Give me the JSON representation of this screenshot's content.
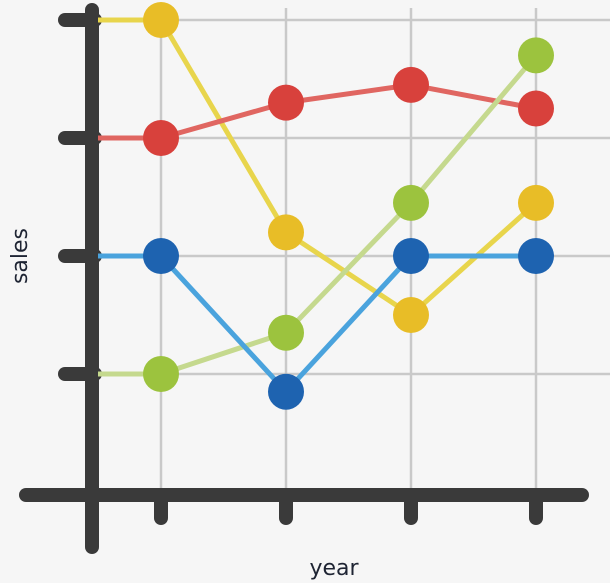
{
  "chart_data": {
    "type": "line",
    "title": "",
    "xlabel": "year",
    "ylabel": "sales",
    "categories": [
      "",
      "",
      "",
      ""
    ],
    "xlim": [
      0,
      4.5
    ],
    "ylim": [
      0,
      4.5
    ],
    "grid": true,
    "legend": "none",
    "series": [
      {
        "color": "#e8d54c",
        "marker_color": "#e8bd27",
        "x": [
          0,
          0.5,
          1.5,
          2.5,
          3.5
        ],
        "values": [
          4.0,
          4.0,
          2.2,
          1.5,
          2.45
        ],
        "markers": [
          false,
          true,
          true,
          true,
          true
        ]
      },
      {
        "color": "#e06661",
        "marker_color": "#d8413c",
        "x": [
          0,
          0.5,
          1.5,
          2.5,
          3.5
        ],
        "values": [
          3.0,
          3.0,
          3.3,
          3.45,
          3.25
        ],
        "markers": [
          false,
          true,
          true,
          true,
          true
        ]
      },
      {
        "color": "#c5d98e",
        "marker_color": "#9cc33e",
        "x": [
          0,
          0.5,
          1.5,
          2.5,
          3.5
        ],
        "values": [
          1.0,
          1.0,
          1.35,
          2.45,
          3.7
        ],
        "markers": [
          false,
          true,
          true,
          true,
          true
        ]
      },
      {
        "color": "#4aa3dd",
        "marker_color": "#1e63b0",
        "x": [
          0,
          0.5,
          1.5,
          2.5,
          3.5
        ],
        "values": [
          2.0,
          2.0,
          0.85,
          2.0,
          2.0
        ],
        "markers": [
          false,
          true,
          true,
          true,
          true
        ]
      }
    ]
  },
  "style": {
    "axis_color": "#3a3a3a",
    "grid_color": "#c9c9c9"
  }
}
